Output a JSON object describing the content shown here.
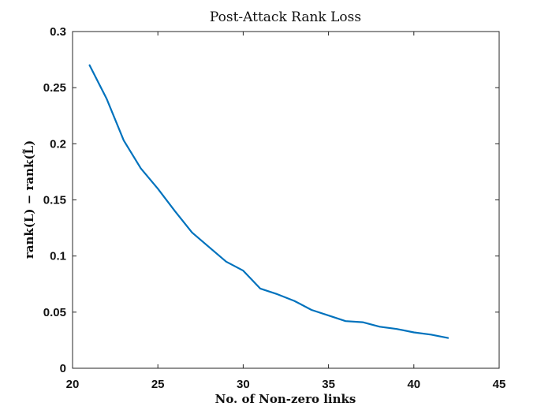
{
  "chart_data": {
    "type": "line",
    "title": "Post-Attack Rank Loss",
    "xlabel": "No. of Non-zero links",
    "ylabel": "rank(L) − rank(L̃)",
    "xlim": [
      20,
      45
    ],
    "ylim": [
      0,
      0.3
    ],
    "xticks": [
      "20",
      "25",
      "30",
      "35",
      "40",
      "45"
    ],
    "yticks": [
      "0",
      "0.05",
      "0.1",
      "0.15",
      "0.2",
      "0.25",
      "0.3"
    ],
    "grid": false,
    "series": [
      {
        "color": "#0072bd",
        "x": [
          21,
          22,
          23,
          24,
          25,
          26,
          27,
          28,
          29,
          30,
          31,
          32,
          33,
          34,
          35,
          36,
          37,
          38,
          39,
          40,
          41,
          42
        ],
        "y": [
          0.27,
          0.24,
          0.203,
          0.178,
          0.16,
          0.14,
          0.121,
          0.108,
          0.095,
          0.087,
          0.071,
          0.066,
          0.06,
          0.052,
          0.047,
          0.042,
          0.041,
          0.037,
          0.035,
          0.032,
          0.03,
          0.027
        ]
      }
    ]
  }
}
